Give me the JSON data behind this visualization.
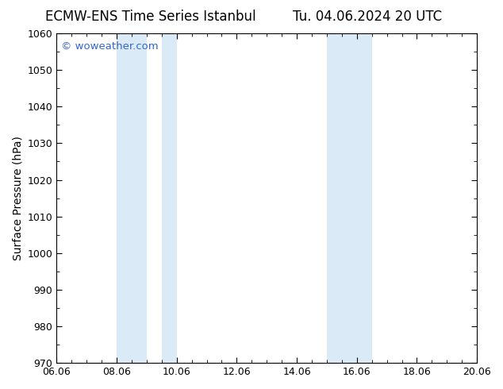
{
  "title_left": "ECMW-ENS Time Series Istanbul",
  "title_right": "Tu. 04.06.2024 20 UTC",
  "ylabel": "Surface Pressure (hPa)",
  "xlabel": "",
  "ylim": [
    970,
    1060
  ],
  "yticks": [
    970,
    980,
    990,
    1000,
    1010,
    1020,
    1030,
    1040,
    1050,
    1060
  ],
  "xlim": [
    0,
    14
  ],
  "xtick_labels": [
    "06.06",
    "08.06",
    "10.06",
    "12.06",
    "14.06",
    "16.06",
    "18.06",
    "20.06"
  ],
  "xtick_positions": [
    0,
    2,
    4,
    6,
    8,
    10,
    12,
    14
  ],
  "shaded_bands": [
    {
      "x_start": 2.0,
      "x_end": 3.0
    },
    {
      "x_start": 3.5,
      "x_end": 4.0
    },
    {
      "x_start": 9.0,
      "x_end": 10.0
    },
    {
      "x_start": 10.0,
      "x_end": 10.5
    }
  ],
  "shade_color": "#daeaf6",
  "bg_color": "#ffffff",
  "axes_bg_color": "#ffffff",
  "spine_color": "#000000",
  "watermark_text": "© woweather.com",
  "watermark_color": "#3366cc",
  "title_fontsize": 12,
  "tick_fontsize": 9,
  "ylabel_fontsize": 10,
  "minor_ticks_per_major": 4
}
